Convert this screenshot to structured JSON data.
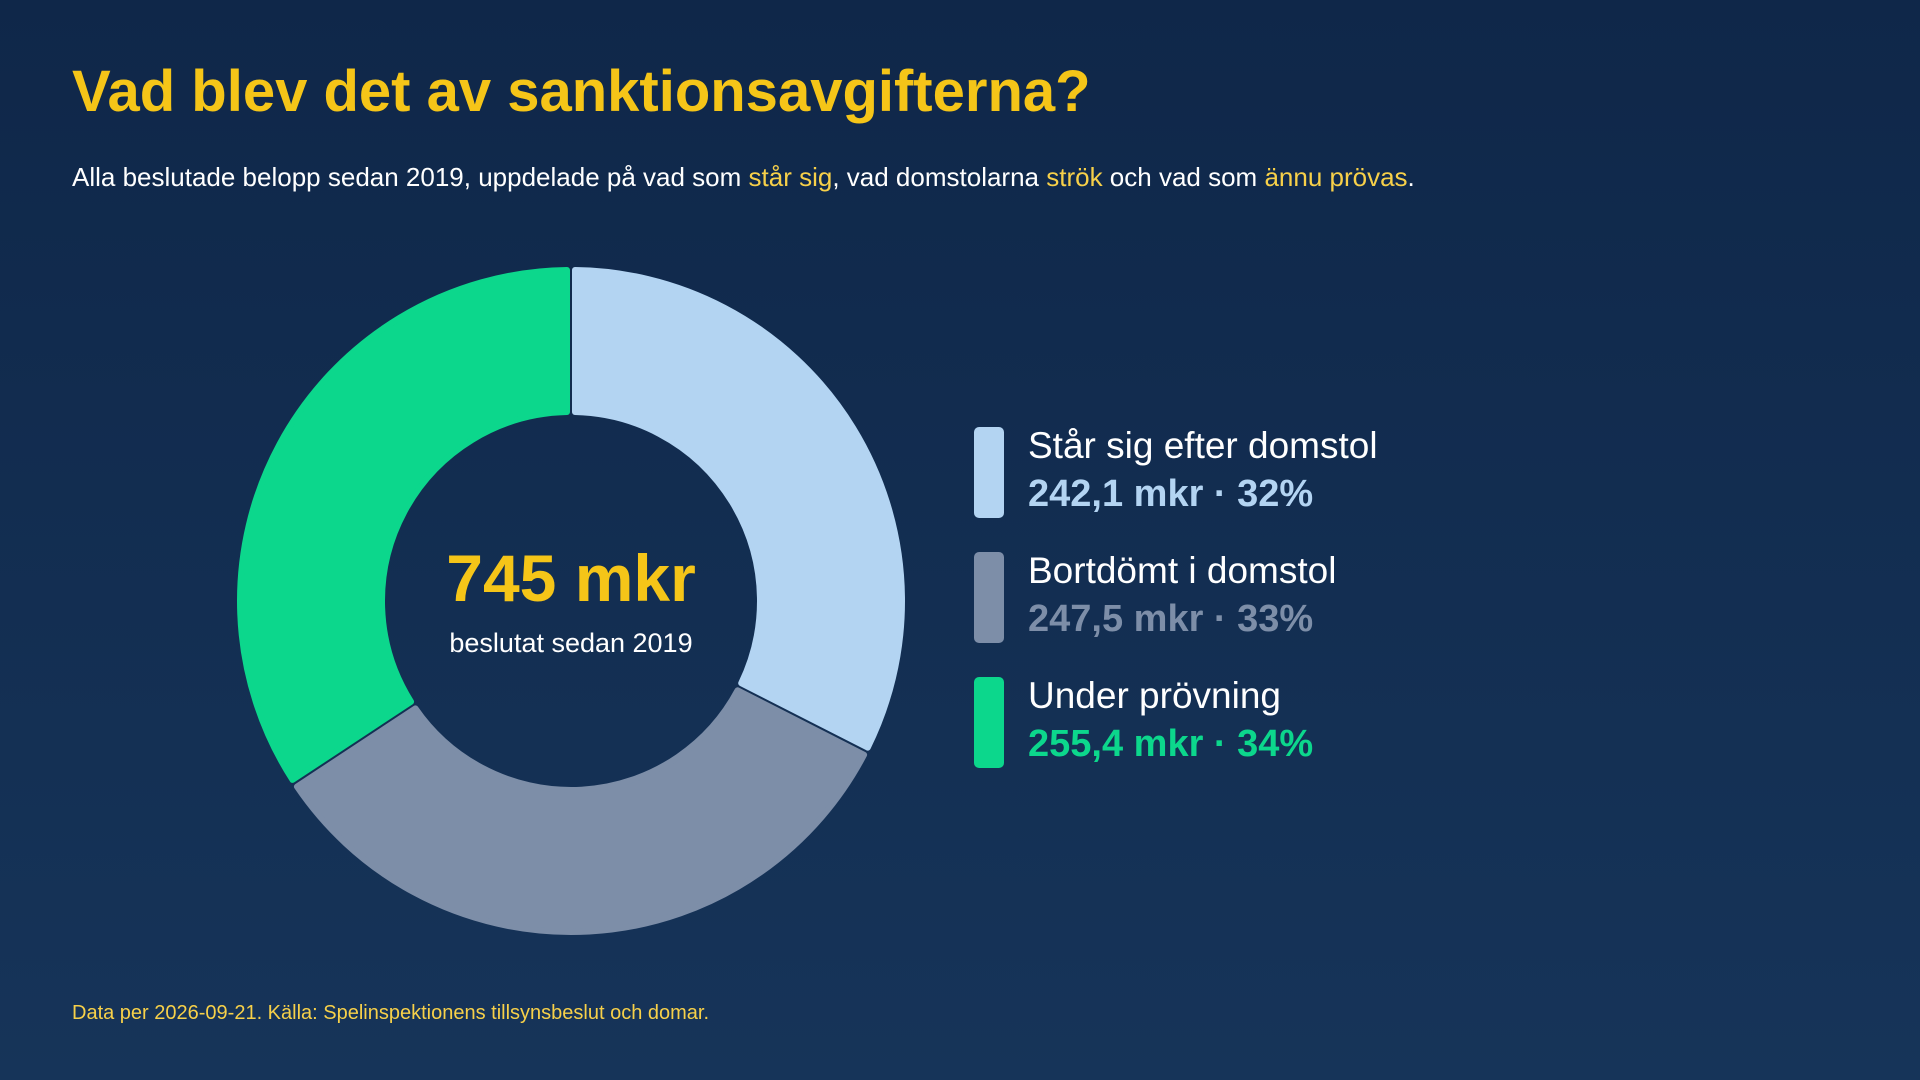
{
  "header": {
    "title": "Vad blev det av sanktionsavgifterna?",
    "subtitle": {
      "part1": "Alla beslutade belopp sedan 2019, uppdelade på vad som ",
      "hl1": "står sig",
      "part2": ", vad domstolarna ",
      "hl2": "strök",
      "part3": " och vad som ",
      "hl3": "ännu prövas",
      "part4": "."
    }
  },
  "chart_data": {
    "type": "pie",
    "variant": "donut",
    "center_value": "745 mkr",
    "center_label": "beslutat sedan 2019",
    "legend_position": "right",
    "series": [
      {
        "name": "Står sig efter domstol",
        "value": 242.1,
        "percent": 32,
        "value_label": "242,1 mkr · 32%",
        "color": "#b3d4f2"
      },
      {
        "name": "Bortdömt i domstol",
        "value": 247.5,
        "percent": 33,
        "value_label": "247,5 mkr · 33%",
        "color": "#7d8ea8"
      },
      {
        "name": "Under prövning",
        "value": 255.4,
        "percent": 34,
        "value_label": "255,4 mkr · 34%",
        "color": "#0cd78c"
      }
    ]
  },
  "footer": {
    "note": "Data per 2026-09-21. Källa: Spelinspektionens tillsynsbeslut och domar."
  },
  "colors": {
    "accent": "#f5c518",
    "highlight": "#f7d049",
    "background_top": "#0f2749",
    "background_bottom": "#163459"
  }
}
